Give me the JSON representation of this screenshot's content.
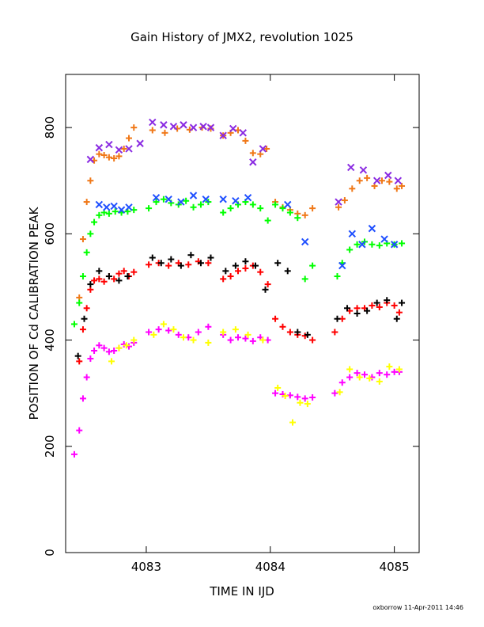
{
  "chart_data": {
    "type": "scatter",
    "title": "Gain History of JMX2, revolution 1025",
    "xlabel": "TIME IN IJD",
    "ylabel": "POSITION OF Cd CALIBRATION PEAK",
    "xlim": [
      4082.35,
      4085.2
    ],
    "ylim": [
      0,
      900
    ],
    "xticks": [
      {
        "value": 4083,
        "label": "4083"
      },
      {
        "value": 4084,
        "label": "4084"
      },
      {
        "value": 4085,
        "label": "4085"
      }
    ],
    "yticks": [
      {
        "value": 0,
        "label": "0"
      },
      {
        "value": 200,
        "label": "200"
      },
      {
        "value": 400,
        "label": "400"
      },
      {
        "value": 600,
        "label": "600"
      },
      {
        "value": 800,
        "label": "800"
      }
    ],
    "grid": false,
    "legend": "none",
    "footer": "oxborrow 11-Apr-2011 14:46",
    "series": [
      {
        "color": "#f07818",
        "marker": "plus",
        "x": [
          4082.46,
          4082.49,
          4082.52,
          4082.55,
          4082.58,
          4082.62,
          4082.66,
          4082.7,
          4082.74,
          4082.78,
          4082.82,
          4082.86,
          4082.9,
          4083.05,
          4083.15,
          4083.25,
          4083.35,
          4083.45,
          4083.52,
          4083.62,
          4083.68,
          4083.74,
          4083.8,
          4083.86,
          4083.92,
          4083.97,
          4084.04,
          4084.1,
          4084.16,
          4084.22,
          4084.28,
          4084.34,
          4084.55,
          4084.6,
          4084.66,
          4084.72,
          4084.78,
          4084.84,
          4084.9,
          4084.96,
          4085.02,
          4085.06
        ],
        "y": [
          480,
          590,
          660,
          700,
          738,
          750,
          748,
          744,
          742,
          746,
          760,
          780,
          800,
          795,
          790,
          798,
          796,
          800,
          798,
          785,
          790,
          795,
          775,
          752,
          750,
          760,
          660,
          650,
          645,
          638,
          635,
          648,
          650,
          663,
          685,
          700,
          705,
          690,
          700,
          698,
          685,
          690
        ]
      },
      {
        "color": "#8a2be2",
        "marker": "x",
        "x": [
          4082.55,
          4082.62,
          4082.7,
          4082.78,
          4082.86,
          4082.95,
          4083.05,
          4083.14,
          4083.22,
          4083.3,
          4083.38,
          4083.46,
          4083.52,
          4083.62,
          4083.7,
          4083.78,
          4083.86,
          4083.94,
          4084.55,
          4084.65,
          4084.75,
          4084.86,
          4084.95,
          4085.03
        ],
        "y": [
          740,
          762,
          768,
          758,
          760,
          770,
          810,
          805,
          802,
          805,
          800,
          802,
          800,
          785,
          798,
          790,
          735,
          760,
          660,
          725,
          720,
          700,
          710,
          700
        ]
      },
      {
        "color": "#00ff00",
        "marker": "plus",
        "x": [
          4082.42,
          4082.46,
          4082.49,
          4082.52,
          4082.55,
          4082.58,
          4082.62,
          4082.66,
          4082.7,
          4082.75,
          4082.8,
          4082.85,
          4082.9,
          4083.02,
          4083.08,
          4083.14,
          4083.2,
          4083.26,
          4083.32,
          4083.38,
          4083.44,
          4083.5,
          4083.62,
          4083.68,
          4083.74,
          4083.8,
          4083.86,
          4083.92,
          4083.98,
          4084.04,
          4084.1,
          4084.16,
          4084.22,
          4084.28,
          4084.34,
          4084.54,
          4084.58,
          4084.64,
          4084.7,
          4084.76,
          4084.82,
          4084.88,
          4084.94,
          4085.0,
          4085.06
        ],
        "y": [
          430,
          470,
          520,
          565,
          600,
          622,
          635,
          640,
          638,
          642,
          640,
          642,
          645,
          648,
          660,
          665,
          658,
          655,
          662,
          650,
          655,
          660,
          640,
          648,
          655,
          660,
          655,
          648,
          625,
          655,
          648,
          640,
          630,
          515,
          540,
          520,
          545,
          570,
          580,
          585,
          580,
          578,
          582,
          580,
          582
        ]
      },
      {
        "color": "#2050ff",
        "marker": "x",
        "x": [
          4082.62,
          4082.68,
          4082.74,
          4082.8,
          4082.86,
          4083.08,
          4083.18,
          4083.28,
          4083.38,
          4083.48,
          4083.62,
          4083.72,
          4083.82,
          4084.14,
          4084.28,
          4084.58,
          4084.66,
          4084.74,
          4084.82,
          4084.92,
          4085.0
        ],
        "y": [
          655,
          650,
          652,
          645,
          650,
          668,
          665,
          660,
          672,
          665,
          665,
          662,
          668,
          655,
          585,
          540,
          600,
          580,
          610,
          590,
          580
        ]
      },
      {
        "color": "#ff0000",
        "marker": "plus",
        "x": [
          4082.46,
          4082.49,
          4082.52,
          4082.55,
          4082.58,
          4082.62,
          4082.66,
          4082.7,
          4082.74,
          4082.78,
          4082.82,
          4082.86,
          4082.9,
          4083.02,
          4083.1,
          4083.18,
          4083.26,
          4083.34,
          4083.42,
          4083.5,
          4083.62,
          4083.68,
          4083.74,
          4083.8,
          4083.86,
          4083.92,
          4083.98,
          4084.04,
          4084.1,
          4084.16,
          4084.22,
          4084.28,
          4084.34,
          4084.52,
          4084.58,
          4084.64,
          4084.7,
          4084.76,
          4084.82,
          4084.88,
          4084.94,
          4085.0,
          4085.04
        ],
        "y": [
          360,
          420,
          460,
          495,
          512,
          515,
          510,
          520,
          515,
          525,
          530,
          520,
          528,
          542,
          545,
          540,
          545,
          542,
          548,
          545,
          515,
          520,
          530,
          535,
          540,
          528,
          505,
          440,
          425,
          415,
          410,
          408,
          400,
          415,
          440,
          455,
          460,
          460,
          465,
          462,
          470,
          465,
          452
        ]
      },
      {
        "color": "#000000",
        "marker": "plus",
        "x": [
          4082.45,
          4082.5,
          4082.55,
          4082.62,
          4082.7,
          4082.78,
          4082.85,
          4083.05,
          4083.12,
          4083.2,
          4083.28,
          4083.36,
          4083.44,
          4083.52,
          4083.64,
          4083.72,
          4083.8,
          4083.88,
          4083.96,
          4084.06,
          4084.14,
          4084.22,
          4084.3,
          4084.54,
          4084.62,
          4084.7,
          4084.78,
          4084.86,
          4084.94,
          4085.02,
          4085.06
        ],
        "y": [
          370,
          440,
          505,
          530,
          520,
          512,
          520,
          555,
          545,
          552,
          540,
          560,
          545,
          555,
          530,
          540,
          548,
          540,
          495,
          545,
          530,
          415,
          410,
          440,
          460,
          450,
          455,
          470,
          475,
          440,
          470
        ]
      },
      {
        "color": "#ff00ff",
        "marker": "plus",
        "x": [
          4082.42,
          4082.46,
          4082.49,
          4082.52,
          4082.55,
          4082.58,
          4082.62,
          4082.66,
          4082.7,
          4082.74,
          4082.78,
          4082.82,
          4082.86,
          4082.9,
          4083.02,
          4083.1,
          4083.18,
          4083.26,
          4083.34,
          4083.42,
          4083.5,
          4083.62,
          4083.68,
          4083.74,
          4083.8,
          4083.86,
          4083.92,
          4083.98,
          4084.04,
          4084.1,
          4084.16,
          4084.22,
          4084.28,
          4084.34,
          4084.52,
          4084.58,
          4084.64,
          4084.7,
          4084.76,
          4084.82,
          4084.88,
          4084.94,
          4085.0,
          4085.04
        ],
        "y": [
          185,
          230,
          290,
          330,
          365,
          380,
          390,
          385,
          378,
          380,
          385,
          392,
          388,
          395,
          415,
          420,
          418,
          410,
          405,
          415,
          425,
          410,
          400,
          405,
          403,
          398,
          405,
          400,
          300,
          298,
          296,
          293,
          290,
          292,
          300,
          320,
          330,
          338,
          335,
          330,
          338,
          335,
          340,
          340
        ]
      },
      {
        "color": "#ffff00",
        "marker": "plus",
        "x": [
          4082.72,
          4082.78,
          4082.84,
          4082.9,
          4083.06,
          4083.14,
          4083.22,
          4083.3,
          4083.38,
          4083.5,
          4083.62,
          4083.72,
          4083.82,
          4083.94,
          4084.06,
          4084.12,
          4084.18,
          4084.24,
          4084.3,
          4084.56,
          4084.64,
          4084.72,
          4084.8,
          4084.88,
          4084.96,
          4085.04
        ],
        "y": [
          360,
          385,
          390,
          400,
          410,
          430,
          420,
          405,
          400,
          395,
          415,
          420,
          410,
          400,
          310,
          295,
          245,
          282,
          280,
          302,
          345,
          330,
          328,
          322,
          350,
          345
        ]
      }
    ]
  }
}
